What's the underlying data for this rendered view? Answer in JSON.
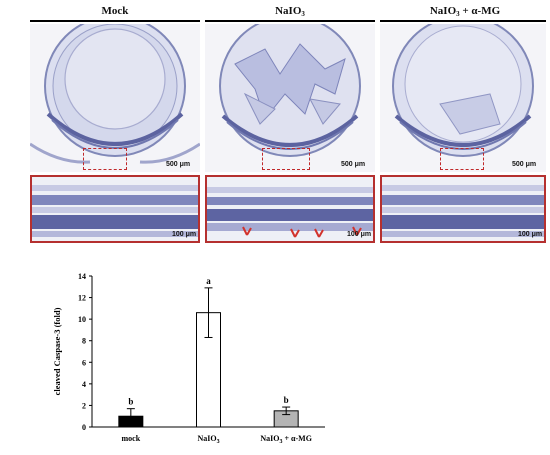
{
  "groups": [
    {
      "label": "Mock"
    },
    {
      "label_main": "NaIO",
      "label_sub": "3"
    },
    {
      "label_main": "NaIO",
      "label_sub": "3",
      "label_tail": " + α-MG"
    }
  ],
  "scalebars": {
    "overview": "500 μm",
    "zoom": "100 μm"
  },
  "chart_data": {
    "type": "bar",
    "categories": [
      {
        "main": "mock",
        "sub": "",
        "tail": ""
      },
      {
        "main": "NaIO",
        "sub": "3",
        "tail": ""
      },
      {
        "main": "NaIO",
        "sub": "3",
        "tail": " + α-MG"
      }
    ],
    "values": [
      1.0,
      10.6,
      1.5
    ],
    "errors": [
      0.7,
      2.3,
      0.35
    ],
    "significance": [
      "b",
      "a",
      "b"
    ],
    "colors": [
      "#000000",
      "#ffffff",
      "#b4b4b4"
    ],
    "ylabel": "cleaved Caspase-3 (fold)",
    "ylim": [
      0,
      14
    ],
    "yticks": [
      "0",
      "2",
      "4",
      "6",
      "8",
      "10",
      "12",
      "14"
    ],
    "grid": false
  }
}
